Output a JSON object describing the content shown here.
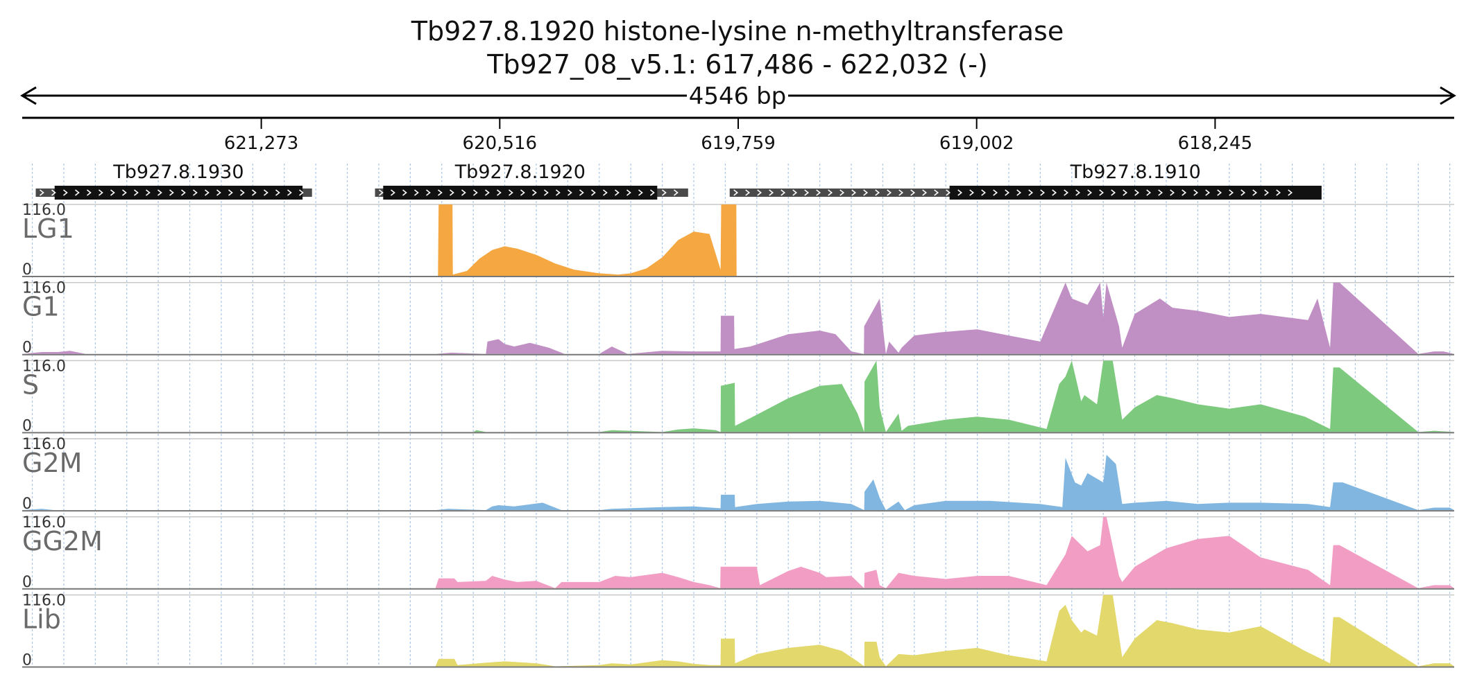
{
  "title": {
    "line1": "Tb927.8.1920  histone-lysine n-methyltransferase",
    "line2": "Tb927_08_v5.1: 617,486 - 622,032 (-)",
    "span_label": "4546 bp"
  },
  "chart_data": {
    "type": "area",
    "x_axis": {
      "orientation": "reversed (high coordinate on left)",
      "start": 622032,
      "end": 617486,
      "ticks": [
        {
          "value": 621273,
          "label": "621,273"
        },
        {
          "value": 620516,
          "label": "620,516"
        },
        {
          "value": 619759,
          "label": "619,759"
        },
        {
          "value": 619002,
          "label": "619,002"
        },
        {
          "value": 618245,
          "label": "618,245"
        }
      ]
    },
    "genes": [
      {
        "name": "Tb927.8.1930",
        "utr": [
          621989,
          621112
        ],
        "cds": [
          621929,
          621142
        ]
      },
      {
        "name": "Tb927.8.1920",
        "utr": [
          620912,
          619918
        ],
        "cds": [
          620886,
          620016
        ]
      },
      {
        "name": "Tb927.8.1910",
        "utr": [
          619786,
          617966
        ],
        "cds": [
          619088,
          617907
        ]
      }
    ],
    "ylim": [
      0,
      116.0
    ],
    "y_max_label": "116.0",
    "y_min_label": "0",
    "grid": true,
    "series": [
      {
        "name": "LG1",
        "color": "#f5a742",
        "x": [
          622032,
          620712,
          620710,
          620666,
          620665,
          620620,
          620580,
          620540,
          620500,
          620460,
          620400,
          620340,
          620280,
          620200,
          620140,
          620100,
          620050,
          620000,
          619950,
          619900,
          619850,
          619815,
          619813,
          619765,
          619764,
          617486
        ],
        "y": [
          0,
          0,
          116,
          116,
          2,
          8,
          28,
          42,
          48,
          44,
          34,
          20,
          10,
          4,
          2,
          4,
          12,
          30,
          58,
          72,
          68,
          10,
          116,
          116,
          0,
          0
        ]
      },
      {
        "name": "G1",
        "color": "#c08fc4",
        "x": [
          622032,
          621970,
          621920,
          621880,
          621830,
          620720,
          620670,
          620560,
          620555,
          620520,
          620500,
          620470,
          620420,
          620360,
          620310,
          620200,
          620160,
          620110,
          620000,
          619900,
          619815,
          619814,
          619772,
          619771,
          619720,
          619600,
          619500,
          619450,
          619400,
          619360,
          619359,
          619310,
          619300,
          619290,
          619280,
          619250,
          619240,
          619200,
          619120,
          619000,
          618900,
          618800,
          618720,
          618700,
          618650,
          618610,
          618600,
          618590,
          618550,
          618540,
          618500,
          618420,
          618380,
          618300,
          618200,
          618100,
          617950,
          617920,
          617880,
          617870,
          617850,
          617600,
          617550,
          617520,
          617486
        ],
        "y": [
          0,
          3,
          3,
          5,
          0,
          0,
          2,
          0,
          20,
          24,
          16,
          12,
          18,
          10,
          0,
          0,
          12,
          0,
          5,
          4,
          4,
          62,
          62,
          8,
          12,
          32,
          38,
          32,
          4,
          0,
          45,
          90,
          45,
          0,
          20,
          2,
          10,
          30,
          35,
          40,
          30,
          20,
          116,
          90,
          80,
          116,
          60,
          116,
          45,
          10,
          65,
          90,
          75,
          70,
          60,
          65,
          55,
          90,
          10,
          116,
          116,
          0,
          4,
          4,
          0
        ]
      },
      {
        "name": "S",
        "color": "#7dc97d",
        "x": [
          622032,
          620600,
          620590,
          620560,
          620200,
          620160,
          620000,
          619950,
          619900,
          619830,
          619815,
          619814,
          619770,
          619769,
          619700,
          619600,
          619500,
          619430,
          619380,
          619359,
          619358,
          619320,
          619310,
          619290,
          619250,
          619240,
          619220,
          619100,
          619000,
          618900,
          618780,
          618740,
          618720,
          618700,
          618670,
          618660,
          618620,
          618600,
          618570,
          618540,
          618500,
          618430,
          618380,
          618300,
          618200,
          618100,
          617960,
          617880,
          617870,
          617850,
          617600,
          617550,
          617486
        ],
        "y": [
          0,
          0,
          3,
          0,
          0,
          3,
          0,
          4,
          6,
          3,
          0,
          75,
          80,
          10,
          28,
          55,
          75,
          78,
          30,
          0,
          82,
          116,
          40,
          0,
          30,
          2,
          10,
          20,
          25,
          20,
          5,
          78,
          90,
          116,
          50,
          60,
          45,
          116,
          116,
          20,
          40,
          60,
          55,
          45,
          38,
          45,
          25,
          5,
          105,
          105,
          0,
          2,
          0
        ]
      },
      {
        "name": "G2M",
        "color": "#80b6e0",
        "x": [
          622032,
          621970,
          621930,
          620720,
          620680,
          620560,
          620540,
          620520,
          620470,
          620380,
          620320,
          620200,
          620160,
          620000,
          619900,
          619815,
          619814,
          619770,
          619769,
          619700,
          619600,
          619500,
          619400,
          619359,
          619358,
          619330,
          619310,
          619290,
          619250,
          619230,
          619200,
          619100,
          618960,
          618800,
          618730,
          618720,
          618690,
          618670,
          618650,
          618600,
          618590,
          618560,
          618540,
          618500,
          618400,
          618300,
          618200,
          618100,
          617950,
          617880,
          617870,
          617840,
          617600,
          617550,
          617500,
          617486
        ],
        "y": [
          0,
          2,
          0,
          0,
          2,
          0,
          6,
          8,
          6,
          12,
          0,
          0,
          2,
          5,
          6,
          3,
          25,
          25,
          5,
          10,
          14,
          15,
          10,
          0,
          30,
          50,
          20,
          0,
          14,
          0,
          8,
          15,
          15,
          10,
          5,
          85,
          45,
          40,
          60,
          45,
          90,
          75,
          10,
          12,
          15,
          10,
          12,
          12,
          10,
          5,
          45,
          45,
          0,
          4,
          4,
          0
        ]
      },
      {
        "name": "GG2M",
        "color": "#f29ec4",
        "x": [
          622032,
          620720,
          620710,
          620660,
          620650,
          620560,
          620540,
          620500,
          620460,
          620400,
          620340,
          620320,
          620200,
          620150,
          620100,
          620000,
          619950,
          619900,
          619850,
          619816,
          619815,
          619700,
          619690,
          619600,
          619560,
          619500,
          619480,
          619400,
          619359,
          619358,
          619320,
          619310,
          619290,
          619250,
          619200,
          619100,
          619000,
          618900,
          618780,
          618720,
          618700,
          618650,
          618610,
          618600,
          618590,
          618550,
          618540,
          618500,
          618400,
          618300,
          618200,
          618100,
          617950,
          617880,
          617870,
          617850,
          617600,
          617550,
          617500,
          617486
        ],
        "y": [
          0,
          0,
          16,
          16,
          10,
          12,
          20,
          14,
          10,
          12,
          0,
          10,
          10,
          20,
          18,
          25,
          18,
          10,
          5,
          0,
          35,
          35,
          5,
          28,
          35,
          25,
          18,
          20,
          0,
          25,
          30,
          5,
          0,
          25,
          20,
          15,
          20,
          20,
          5,
          55,
          85,
          60,
          70,
          116,
          116,
          20,
          10,
          35,
          65,
          80,
          85,
          50,
          30,
          5,
          70,
          70,
          0,
          5,
          5,
          0
        ]
      },
      {
        "name": "Lib",
        "color": "#e3d86b",
        "x": [
          622032,
          620720,
          620710,
          620660,
          620650,
          620560,
          620500,
          620400,
          620340,
          620200,
          620160,
          620100,
          620000,
          619950,
          619900,
          619850,
          619815,
          619814,
          619770,
          619769,
          619700,
          619600,
          619500,
          619430,
          619380,
          619359,
          619358,
          619320,
          619310,
          619290,
          619250,
          619200,
          619100,
          619000,
          618900,
          618780,
          618740,
          618720,
          618700,
          618670,
          618660,
          618620,
          618600,
          618570,
          618540,
          618500,
          618430,
          618380,
          618300,
          618200,
          618100,
          617960,
          617880,
          617870,
          617850,
          617600,
          617550,
          617500,
          617486
        ],
        "y": [
          0,
          0,
          12,
          12,
          2,
          6,
          8,
          5,
          0,
          2,
          5,
          3,
          10,
          8,
          4,
          2,
          2,
          45,
          45,
          5,
          20,
          30,
          35,
          25,
          8,
          0,
          40,
          40,
          15,
          0,
          20,
          18,
          25,
          30,
          18,
          8,
          90,
          100,
          75,
          55,
          60,
          50,
          116,
          116,
          15,
          45,
          75,
          70,
          60,
          55,
          65,
          25,
          5,
          80,
          80,
          0,
          5,
          5,
          0
        ]
      }
    ]
  }
}
